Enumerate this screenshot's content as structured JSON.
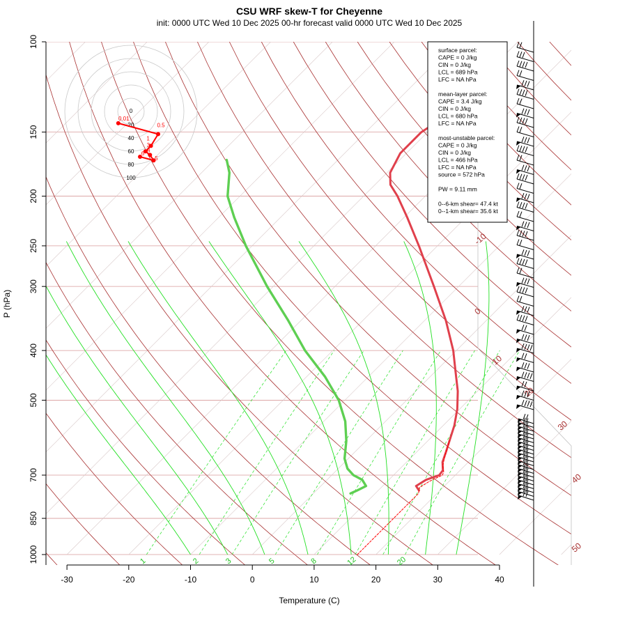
{
  "chart_data": {
    "type": "line",
    "title": "CSU WRF skew-T for Cheyenne",
    "subtitle": "init: 0000 UTC Wed 10 Dec 2025    00-hr forecast valid 0000 UTC Wed 10 Dec 2025",
    "xlabel": "Temperature (C)",
    "ylabel": "P (hPa)",
    "x_ticks": [
      -30,
      -20,
      -10,
      0,
      10,
      20,
      30,
      40
    ],
    "y_ticks": [
      100,
      150,
      200,
      250,
      300,
      400,
      500,
      700,
      850,
      1000
    ],
    "isotherm_labels": [
      -10,
      0,
      10,
      20,
      30,
      40,
      50
    ],
    "mixing_ratio_labels": [
      1,
      2,
      3,
      5,
      8,
      12,
      20
    ],
    "series": [
      {
        "name": "",
        "color": "#e0404c",
        "points": [
          {
            "p": 750,
            "t": 16.6
          },
          {
            "p": 735,
            "t": 15.4
          },
          {
            "p": 715,
            "t": 16.0
          },
          {
            "p": 700,
            "t": 17.4
          },
          {
            "p": 685,
            "t": 17.2
          },
          {
            "p": 660,
            "t": 15.8
          },
          {
            "p": 630,
            "t": 14.7
          },
          {
            "p": 600,
            "t": 13.5
          },
          {
            "p": 560,
            "t": 11.8
          },
          {
            "p": 520,
            "t": 9.6
          },
          {
            "p": 480,
            "t": 6.8
          },
          {
            "p": 440,
            "t": 3.3
          },
          {
            "p": 400,
            "t": -0.5
          },
          {
            "p": 350,
            "t": -6.5
          },
          {
            "p": 300,
            "t": -14.0
          },
          {
            "p": 250,
            "t": -23.0
          },
          {
            "p": 220,
            "t": -29.5
          },
          {
            "p": 200,
            "t": -34.5
          },
          {
            "p": 190,
            "t": -37.5
          },
          {
            "p": 180,
            "t": -39.5
          },
          {
            "p": 165,
            "t": -41.0
          },
          {
            "p": 150,
            "t": -41.0
          },
          {
            "p": 135,
            "t": -39.0
          },
          {
            "p": 120,
            "t": -38.5
          },
          {
            "p": 110,
            "t": -39.0
          }
        ]
      },
      {
        "name": "",
        "color": "#5ecf52",
        "points": [
          {
            "p": 760,
            "t": 6.0
          },
          {
            "p": 750,
            "t": 6.6
          },
          {
            "p": 735,
            "t": 7.3
          },
          {
            "p": 715,
            "t": 5.7
          },
          {
            "p": 700,
            "t": 3.5
          },
          {
            "p": 680,
            "t": 1.5
          },
          {
            "p": 650,
            "t": -0.6
          },
          {
            "p": 600,
            "t": -3.2
          },
          {
            "p": 550,
            "t": -6.5
          },
          {
            "p": 500,
            "t": -11.0
          },
          {
            "p": 450,
            "t": -17.0
          },
          {
            "p": 400,
            "t": -24.5
          },
          {
            "p": 350,
            "t": -32.0
          },
          {
            "p": 300,
            "t": -41.0
          },
          {
            "p": 250,
            "t": -51.0
          },
          {
            "p": 220,
            "t": -57.5
          },
          {
            "p": 200,
            "t": -62.0
          },
          {
            "p": 180,
            "t": -65.5
          },
          {
            "p": 170,
            "t": -68.0
          }
        ]
      },
      {
        "name": "",
        "color": "#ff0000",
        "points": [
          {
            "p": 1000,
            "t": 17.0
          },
          {
            "p": 850,
            "t": 17.0
          },
          {
            "p": 760,
            "t": 17.0
          },
          {
            "p": 740,
            "t": 16.2
          },
          {
            "p": 720,
            "t": 16.8
          },
          {
            "p": 700,
            "t": 17.9
          },
          {
            "p": 690,
            "t": 17.6
          },
          {
            "p": 670,
            "t": 16.4
          },
          {
            "p": 640,
            "t": 15.1
          },
          {
            "p": 600,
            "t": 13.5
          }
        ]
      }
    ],
    "hodograph": {
      "ring_labels": [
        0,
        20,
        40,
        60,
        80,
        100
      ],
      "point_labels": [
        "0.01",
        "0.5",
        "1",
        "3",
        "4",
        "5",
        "6"
      ],
      "points": [
        {
          "u": -7.0,
          "v": -6.5
        },
        {
          "u": 15.0,
          "v": -12.5
        },
        {
          "u": 11.0,
          "v": -19.0
        },
        {
          "u": 8.0,
          "v": -22.0
        },
        {
          "u": 10.5,
          "v": -24.0
        },
        {
          "u": 12.5,
          "v": -27.0
        },
        {
          "u": 5.0,
          "v": -25.0
        }
      ]
    },
    "info": [
      "surface parcel:",
      "CAPE = 0 J/kg",
      "CIN = 0 J/kg",
      "LCL = 689 hPa",
      "LFC = NA hPa",
      "",
      "mean-layer parcel:",
      "CAPE = 3.4 J/kg",
      "CIN = 0 J/kg",
      "LCL = 680 hPa",
      "LFC = NA hPa",
      "",
      "most-unstable parcel:",
      "CAPE = 0 J/kg",
      "CIN = 0 J/kg",
      "LCL = 466 hPa",
      "LFC = NA hPa",
      "source = 572 hPa",
      "",
      "PW =  9.11 mm",
      "",
      "0--6-km shear= 47.4 kt",
      "0--1-km shear= 35.6 kt"
    ]
  }
}
